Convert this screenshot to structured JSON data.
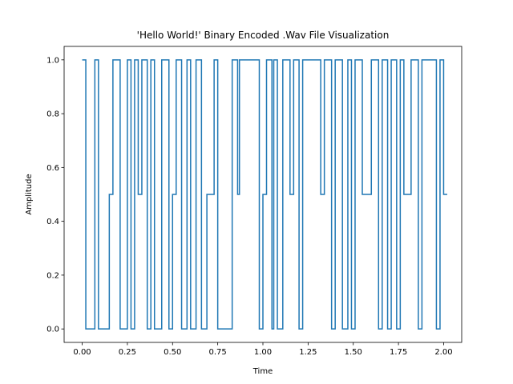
{
  "chart_data": {
    "type": "line",
    "title": "'Hello World!' Binary Encoded .Wav File Visualization",
    "xlabel": "Time",
    "ylabel": "Amplitude",
    "xlim": [
      -0.1,
      2.1
    ],
    "ylim": [
      -0.05,
      1.05
    ],
    "xticks": [
      0.0,
      0.25,
      0.5,
      0.75,
      1.0,
      1.25,
      1.5,
      1.75,
      2.0
    ],
    "xtick_labels": [
      "0.00",
      "0.25",
      "0.50",
      "0.75",
      "1.00",
      "1.25",
      "1.50",
      "1.75",
      "2.00"
    ],
    "yticks": [
      0.0,
      0.2,
      0.4,
      0.6,
      0.8,
      1.0
    ],
    "ytick_labels": [
      "0.0",
      "0.2",
      "0.4",
      "0.6",
      "0.8",
      "1.0"
    ],
    "grid": false,
    "series": [
      {
        "color": "#1f77b4",
        "step": "post",
        "x": [
          0.0,
          0.02,
          0.07,
          0.09,
          0.15,
          0.17,
          0.21,
          0.25,
          0.27,
          0.29,
          0.31,
          0.33,
          0.36,
          0.38,
          0.4,
          0.44,
          0.48,
          0.5,
          0.52,
          0.55,
          0.58,
          0.6,
          0.63,
          0.66,
          0.69,
          0.73,
          0.75,
          0.83,
          0.85,
          0.86,
          0.87,
          0.98,
          1.0,
          1.02,
          1.05,
          1.06,
          1.08,
          1.11,
          1.15,
          1.17,
          1.2,
          1.22,
          1.24,
          1.32,
          1.34,
          1.38,
          1.4,
          1.44,
          1.47,
          1.49,
          1.51,
          1.55,
          1.6,
          1.64,
          1.66,
          1.69,
          1.71,
          1.74,
          1.76,
          1.78,
          1.82,
          1.86,
          1.88,
          1.96,
          1.98,
          2.0
        ],
        "y": [
          1.0,
          0.0,
          1.0,
          0.0,
          0.5,
          1.0,
          0.0,
          1.0,
          0.0,
          1.0,
          0.5,
          1.0,
          0.0,
          1.0,
          0.0,
          1.0,
          0.0,
          0.5,
          1.0,
          0.0,
          1.0,
          0.0,
          1.0,
          0.0,
          0.5,
          1.0,
          0.0,
          1.0,
          1.0,
          0.5,
          1.0,
          0.0,
          0.5,
          1.0,
          0.0,
          1.0,
          0.0,
          1.0,
          0.5,
          1.0,
          0.0,
          1.0,
          1.0,
          0.5,
          1.0,
          0.0,
          1.0,
          0.0,
          1.0,
          0.0,
          1.0,
          0.5,
          1.0,
          0.0,
          1.0,
          0.0,
          1.0,
          0.0,
          1.0,
          0.5,
          1.0,
          0.0,
          1.0,
          0.0,
          1.0,
          0.5
        ]
      }
    ]
  }
}
